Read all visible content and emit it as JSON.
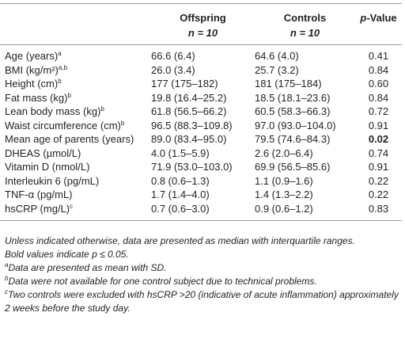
{
  "table": {
    "header": {
      "offspring": {
        "name": "Offspring",
        "n": "n = 10"
      },
      "controls": {
        "name": "Controls",
        "n": "n = 10"
      },
      "p_value": {
        "italic": "p",
        "rest": "-Value"
      }
    },
    "rows": [
      {
        "label": "Age (years)",
        "note": "a",
        "offspring": "66.6 (6.4)",
        "controls": "64.6 (4.0)",
        "p": "0.41"
      },
      {
        "label": "BMI (kg/m²)",
        "note": "a,b",
        "offspring": "26.0 (3.4)",
        "controls": "25.7 (3.2)",
        "p": "0.84"
      },
      {
        "label": "Height (cm)",
        "note": "b",
        "offspring": "177 (175–182)",
        "controls": "181 (175–184)",
        "p": "0.60"
      },
      {
        "label": "Fat mass (kg)",
        "note": "b",
        "offspring": "19.8 (16.4–25.2)",
        "controls": "18.5 (18.1–23.6)",
        "p": "0.84"
      },
      {
        "label": "Lean body mass (kg)",
        "note": "b",
        "offspring": "61.8 (56.5–66.2)",
        "controls": "60.5 (58.3–66.3)",
        "p": "0.72"
      },
      {
        "label": "Waist circumference (cm)",
        "note": "b",
        "offspring": "96.5 (88.3–109.8)",
        "controls": "97.0 (93.0–104.0)",
        "p": "0.91"
      },
      {
        "label": "Mean age of parents (years)",
        "offspring": "89.0 (83.4–95.0)",
        "controls": "79.5 (74.6–84.3)",
        "p": "0.02",
        "bold": true
      },
      {
        "label": "DHEAS (µmol/L)",
        "offspring": "4.0 (1.5–5.9)",
        "controls": "2.6 (2.0–6.4)",
        "p": "0.74"
      },
      {
        "label": "Vitamin D (nmol/L)",
        "offspring": "71.9 (53.0–103.0)",
        "controls": "69.9 (56.5–85.6)",
        "p": "0.91"
      },
      {
        "label": "Interleukin 6 (pg/mL)",
        "offspring": "0.8 (0.6–1.3)",
        "controls": "1.1 (0.9–1.6)",
        "p": "0.22"
      },
      {
        "label": "TNF-α (pg/mL)",
        "offspring": "1.7 (1.4–4.0)",
        "controls": "1.4 (1.3–2.2)",
        "p": "0.22"
      },
      {
        "label": "hsCRP (mg/L)",
        "note": "c",
        "offspring": "0.7 (0.6–3.0)",
        "controls": "0.9 (0.6–1.2)",
        "p": "0.83"
      }
    ],
    "notes": [
      "Unless indicated otherwise, data are presented as median with interquartile ranges.",
      "Bold values indicate p ≤ 0.05."
    ],
    "footnotes": [
      {
        "mark": "a",
        "text": "Data are presented as mean with SD."
      },
      {
        "mark": "b",
        "text": "Data were not available for one control subject due to technical problems."
      },
      {
        "mark": "c",
        "text": "Two controls were excluded with hsCRP >20 (indicative of acute inflammation) approximately 2 weeks before the study day."
      }
    ]
  }
}
